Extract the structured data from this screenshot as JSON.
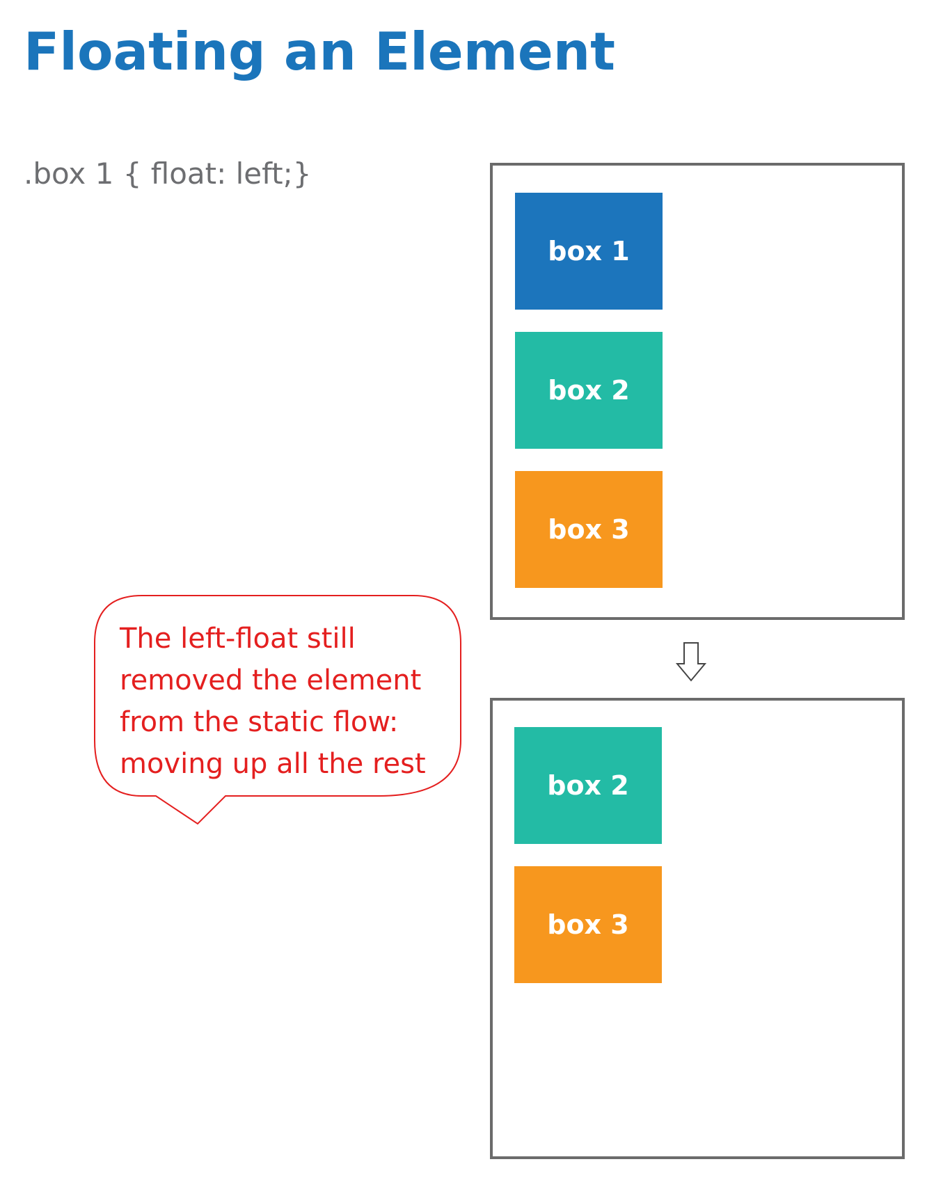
{
  "title": "Floating an Element",
  "code": ".box 1 { float: left;}",
  "before_boxes": [
    {
      "label": "box 1",
      "color": "#1c75bc"
    },
    {
      "label": "box 2",
      "color": "#23bba5"
    },
    {
      "label": "box 3",
      "color": "#f7971e"
    }
  ],
  "after_boxes": [
    {
      "label": "box 2",
      "color": "#23bba5"
    },
    {
      "label": "box 3",
      "color": "#f7971e"
    }
  ],
  "arrow_icon": "down-arrow-outline",
  "callout": {
    "lines": [
      "The left-float still",
      "removed the element",
      "from the static flow:",
      "moving up all the rest"
    ],
    "text_color": "#e41f1f",
    "border_color": "#e41f1f"
  }
}
